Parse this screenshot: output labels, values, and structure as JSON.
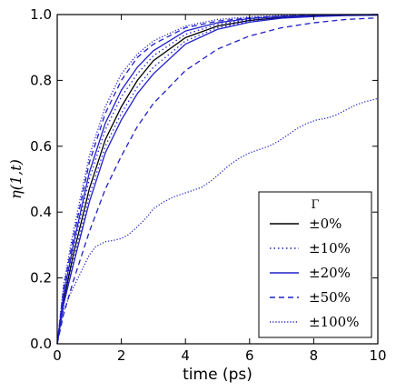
{
  "chart_data": {
    "type": "line",
    "title": "",
    "xlabel": "time (ps)",
    "ylabel": "η(1,t)",
    "xlim": [
      0,
      10
    ],
    "ylim": [
      0.0,
      1.0
    ],
    "xticks": [
      "0",
      "2",
      "4",
      "6",
      "8",
      "10"
    ],
    "yticks": [
      "0.0",
      "0.2",
      "0.4",
      "0.6",
      "0.8",
      "1.0"
    ],
    "grid": false,
    "legend": {
      "title": "Γ",
      "placement": "lower-right",
      "entries": [
        {
          "label": "±0%",
          "color": "#000000",
          "style": "solid"
        },
        {
          "label": "±10%",
          "color": "#2020c8",
          "style": "dotted"
        },
        {
          "label": "±20%",
          "color": "#2020c8",
          "style": "solid"
        },
        {
          "label": "±50%",
          "color": "#2020c8",
          "style": "dashed"
        },
        {
          "label": "±100%",
          "color": "#2020c8",
          "style": "densedot"
        }
      ]
    },
    "series": [
      {
        "name": "±0%",
        "color": "#000000",
        "style": "solid",
        "x": [
          0,
          0.2,
          0.5,
          1,
          1.5,
          2,
          2.5,
          3,
          4,
          5,
          6,
          7,
          8,
          9,
          10
        ],
        "y": [
          0,
          0.13,
          0.27,
          0.47,
          0.62,
          0.72,
          0.8,
          0.86,
          0.93,
          0.965,
          0.982,
          0.991,
          0.995,
          0.998,
          0.999
        ]
      },
      {
        "name": "±10%",
        "color": "#2020c8",
        "style": "dotted",
        "x": [
          0,
          0.2,
          0.5,
          1,
          1.5,
          2,
          2.5,
          3,
          4,
          5,
          6,
          7,
          8,
          9,
          10
        ],
        "y": [
          0,
          0.14,
          0.29,
          0.5,
          0.65,
          0.75,
          0.82,
          0.875,
          0.94,
          0.97,
          0.985,
          0.993,
          0.997,
          0.999,
          1.0
        ]
      },
      {
        "name": "±10%",
        "color": "#2020c8",
        "style": "dotted",
        "x": [
          0,
          0.2,
          0.5,
          1,
          1.5,
          2,
          2.5,
          3,
          4,
          5,
          6,
          7,
          8,
          9,
          10
        ],
        "y": [
          0,
          0.12,
          0.25,
          0.45,
          0.6,
          0.7,
          0.78,
          0.84,
          0.92,
          0.96,
          0.98,
          0.99,
          0.995,
          0.998,
          0.999
        ]
      },
      {
        "name": "±20%",
        "color": "#2020c8",
        "style": "solid",
        "x": [
          0,
          0.2,
          0.5,
          1,
          1.5,
          2,
          2.5,
          3,
          4,
          5,
          6,
          7,
          8,
          9,
          10
        ],
        "y": [
          0,
          0.15,
          0.3,
          0.52,
          0.67,
          0.77,
          0.84,
          0.89,
          0.95,
          0.975,
          0.988,
          0.994,
          0.997,
          0.999,
          1.0
        ]
      },
      {
        "name": "±20%",
        "color": "#2020c8",
        "style": "solid",
        "x": [
          0,
          0.2,
          0.5,
          1,
          1.5,
          2,
          2.5,
          3,
          4,
          5,
          6,
          7,
          8,
          9,
          10
        ],
        "y": [
          0,
          0.12,
          0.24,
          0.43,
          0.58,
          0.68,
          0.76,
          0.82,
          0.91,
          0.955,
          0.977,
          0.989,
          0.994,
          0.997,
          0.998
        ]
      },
      {
        "name": "±50%",
        "color": "#2020c8",
        "style": "dashed",
        "x": [
          0,
          0.2,
          0.5,
          1,
          1.5,
          2,
          2.5,
          3,
          4,
          5,
          6,
          7,
          8,
          9,
          10
        ],
        "y": [
          0,
          0.17,
          0.32,
          0.55,
          0.7,
          0.8,
          0.87,
          0.91,
          0.96,
          0.98,
          0.99,
          0.995,
          0.998,
          0.999,
          1.0
        ]
      },
      {
        "name": "±50%",
        "color": "#2020c8",
        "style": "dashed",
        "x": [
          0,
          0.2,
          0.5,
          1,
          1.5,
          2,
          2.5,
          3,
          4,
          5,
          6,
          7,
          8,
          9,
          10
        ],
        "y": [
          0,
          0.09,
          0.19,
          0.34,
          0.47,
          0.57,
          0.66,
          0.73,
          0.83,
          0.895,
          0.935,
          0.96,
          0.975,
          0.985,
          0.99
        ]
      },
      {
        "name": "±100%",
        "color": "#2020c8",
        "style": "densedot",
        "x": [
          0,
          0.2,
          0.5,
          1,
          1.5,
          2,
          2.5,
          3,
          4,
          5,
          6,
          7,
          8,
          9,
          10
        ],
        "y": [
          0,
          0.18,
          0.34,
          0.57,
          0.72,
          0.82,
          0.88,
          0.92,
          0.965,
          0.985,
          0.993,
          0.997,
          0.999,
          1.0,
          1.0
        ]
      },
      {
        "name": "±100%",
        "color": "#2020c8",
        "style": "densedot",
        "x": [
          0,
          0.1,
          0.2,
          0.4,
          0.6,
          0.8,
          1.0,
          1.2,
          1.5,
          1.8,
          2.0,
          2.2,
          2.5,
          2.8,
          3.0,
          3.3,
          3.6,
          3.9,
          4.2,
          4.5,
          4.8,
          5.1,
          5.4,
          5.7,
          6.0,
          6.3,
          6.6,
          6.9,
          7.2,
          7.5,
          7.8,
          8.1,
          8.4,
          8.7,
          9.0,
          9.3,
          9.6,
          10.0
        ],
        "y": [
          0,
          0.06,
          0.1,
          0.15,
          0.19,
          0.23,
          0.27,
          0.295,
          0.31,
          0.315,
          0.32,
          0.33,
          0.355,
          0.385,
          0.41,
          0.43,
          0.445,
          0.455,
          0.465,
          0.475,
          0.495,
          0.52,
          0.545,
          0.565,
          0.58,
          0.59,
          0.6,
          0.615,
          0.635,
          0.655,
          0.67,
          0.68,
          0.685,
          0.695,
          0.71,
          0.725,
          0.735,
          0.745
        ]
      }
    ]
  }
}
